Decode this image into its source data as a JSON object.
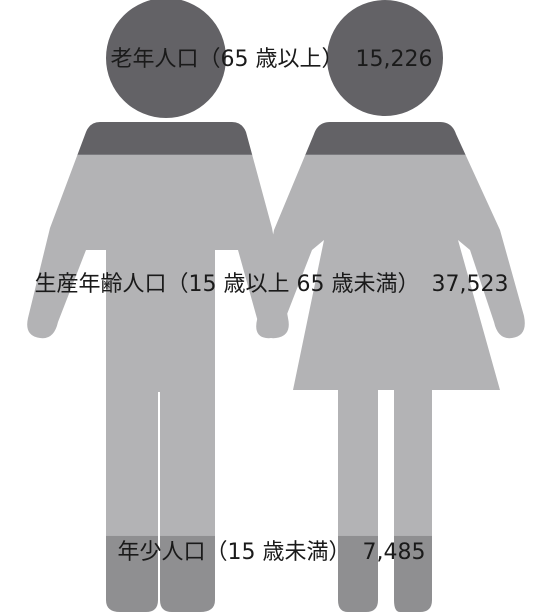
{
  "chart_data": {
    "type": "pictogram",
    "categories": [
      "老年人口（65 歳以上）",
      "生産年齢人口（15 歳以上 65 歳未満）",
      "年少人口（15 歳未満）"
    ],
    "values": [
      15226,
      37523,
      7485
    ],
    "value_labels": [
      "15,226",
      "37,523",
      "7,485"
    ],
    "colors": [
      "#636266",
      "#b3b3b5",
      "#8f8f91"
    ]
  }
}
